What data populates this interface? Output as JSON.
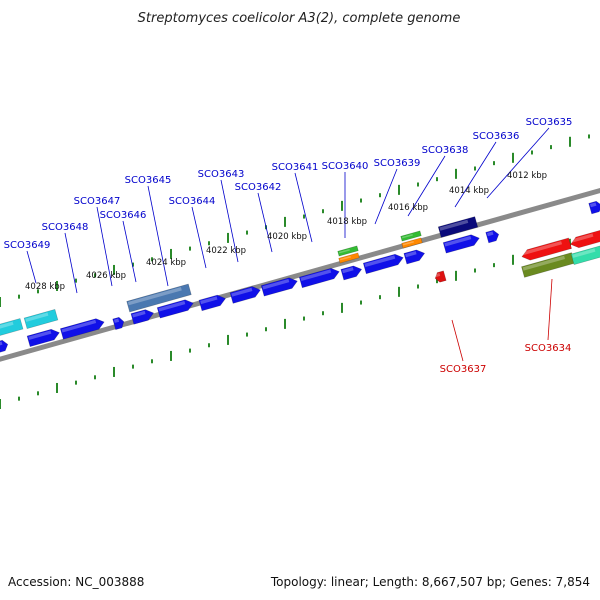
{
  "title": "Streptomyces coelicolor A3(2), complete genome",
  "accession": "Accession: NC_003888",
  "summary": "Topology: linear; Length: 8,667,507 bp; Genes: 7,854",
  "colors": {
    "forward_label": "#0000cc",
    "reverse_label": "#cc0000",
    "gene_blue": "#1010e8",
    "backbone": "#8a8a8a",
    "tick": "#2a8a2a"
  },
  "scale_labels": [
    "4028 kbp",
    "4026 kbp",
    "4024 kbp",
    "4022 kbp",
    "4020 kbp",
    "4018 kbp",
    "4016 kbp",
    "4014 kbp",
    "4012 kbp"
  ],
  "forward_genes": [
    "SCO3649",
    "SCO3648",
    "SCO3647",
    "SCO3646",
    "SCO3645",
    "SCO3644",
    "SCO3643",
    "SCO3642",
    "SCO3641",
    "SCO3640",
    "SCO3639",
    "SCO3638",
    "SCO3636",
    "SCO3635"
  ],
  "reverse_genes": [
    "SCO3637",
    "SCO3634"
  ]
}
